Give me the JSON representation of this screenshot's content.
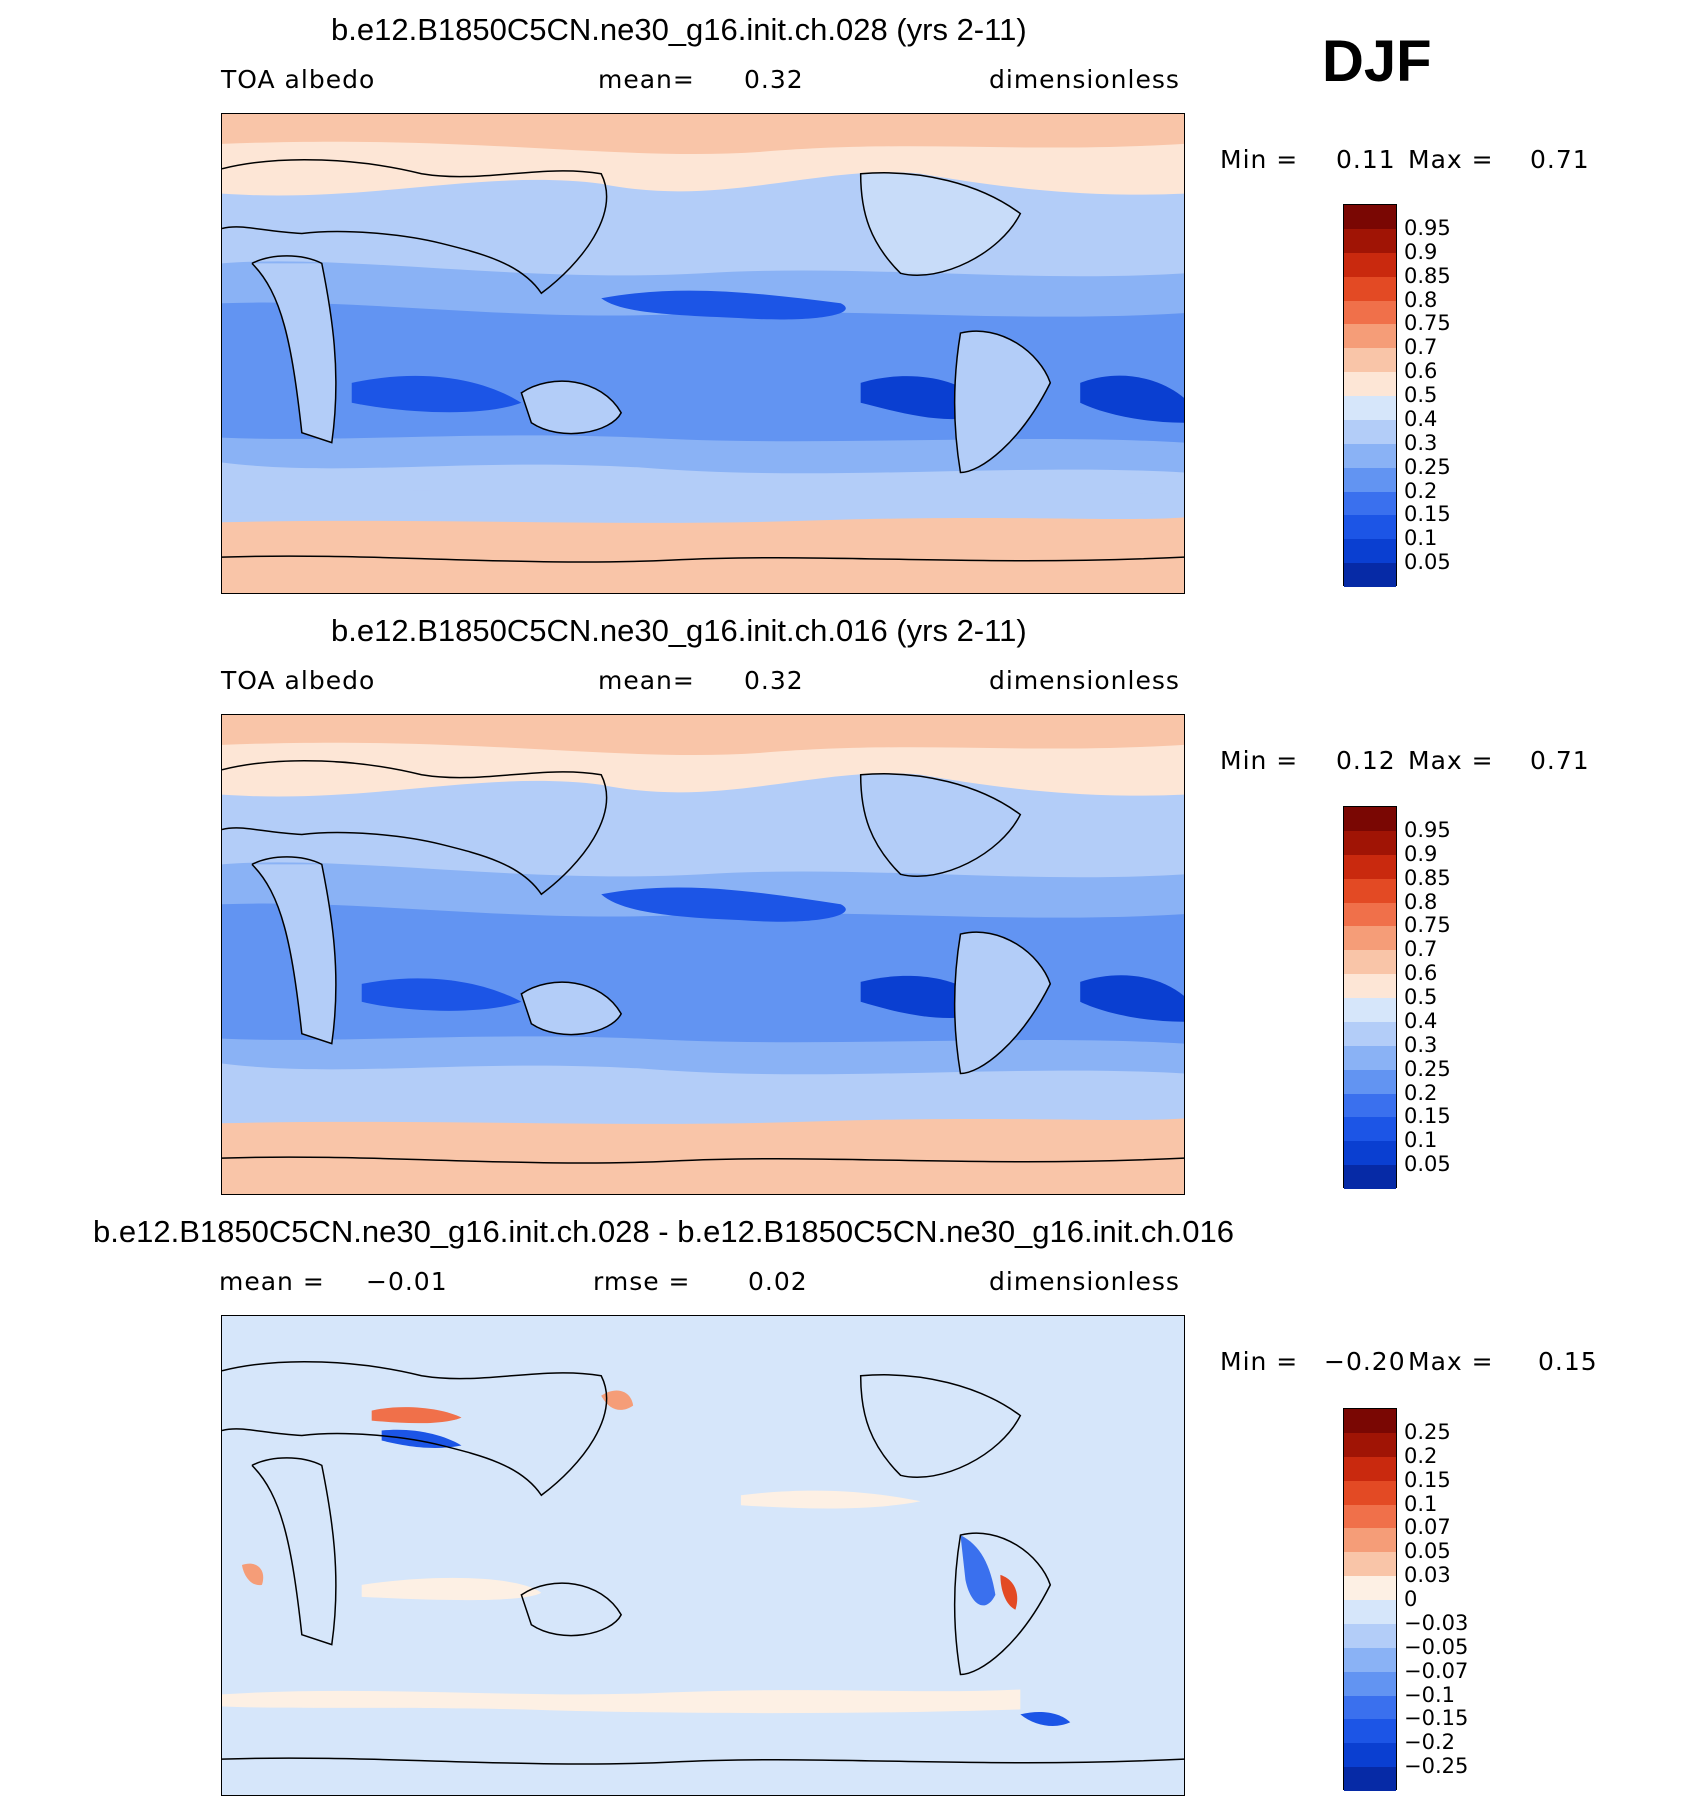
{
  "season": "DJF",
  "colors": {
    "abs_scale": [
      "#000f7f",
      "#062aa6",
      "#0a3fd1",
      "#1c55e6",
      "#3a70ee",
      "#6294f2",
      "#8ab2f5",
      "#b3cdf8",
      "#d6e6fa",
      "#fde6d6",
      "#f9c5a8",
      "#f59d78",
      "#f0704a",
      "#e34a24",
      "#c9290e",
      "#a01405",
      "#7a0703"
    ],
    "diff_scale": [
      "#000f7f",
      "#062aa6",
      "#0a3fd1",
      "#1c55e6",
      "#3a70ee",
      "#6294f2",
      "#8ab2f5",
      "#b3cdf8",
      "#d6e6fa",
      "#fdf0e4",
      "#f9c5a8",
      "#f59d78",
      "#f0704a",
      "#e34a24",
      "#c9290e",
      "#a01405",
      "#7a0703"
    ]
  },
  "panels": [
    {
      "title": "b.e12.B1850C5CN.ne30_g16.init.ch.028 (yrs 2-11)",
      "left_label": "TOA albedo",
      "center_label": "mean=",
      "center_value": "0.32",
      "right_label": "dimensionless",
      "min_label": "Min =",
      "min_value": "0.11",
      "max_label": "Max =",
      "max_value": "0.71",
      "levels": [
        "0.95",
        "0.9",
        "0.85",
        "0.8",
        "0.75",
        "0.7",
        "0.6",
        "0.5",
        "0.4",
        "0.3",
        "0.25",
        "0.2",
        "0.15",
        "0.1",
        "0.05"
      ]
    },
    {
      "title": "b.e12.B1850C5CN.ne30_g16.init.ch.016 (yrs 2-11)",
      "left_label": "TOA albedo",
      "center_label": "mean=",
      "center_value": "0.32",
      "right_label": "dimensionless",
      "min_label": "Min =",
      "min_value": "0.12",
      "max_label": "Max =",
      "max_value": "0.71",
      "levels": [
        "0.95",
        "0.9",
        "0.85",
        "0.8",
        "0.75",
        "0.7",
        "0.6",
        "0.5",
        "0.4",
        "0.3",
        "0.25",
        "0.2",
        "0.15",
        "0.1",
        "0.05"
      ]
    },
    {
      "title": "b.e12.B1850C5CN.ne30_g16.init.ch.028 - b.e12.B1850C5CN.ne30_g16.init.ch.016",
      "left_label": "mean =",
      "left_value": "−0.01",
      "center_label": "rmse =",
      "center_value": "0.02",
      "right_label": "dimensionless",
      "min_label": "Min =",
      "min_value": "−0.20",
      "max_label": "Max =",
      "max_value": "0.15",
      "levels": [
        "0.25",
        "0.2",
        "0.15",
        "0.1",
        "0.07",
        "0.05",
        "0.03",
        "0",
        "−0.03",
        "−0.05",
        "−0.07",
        "−0.1",
        "−0.15",
        "−0.2",
        "−0.25"
      ]
    }
  ]
}
